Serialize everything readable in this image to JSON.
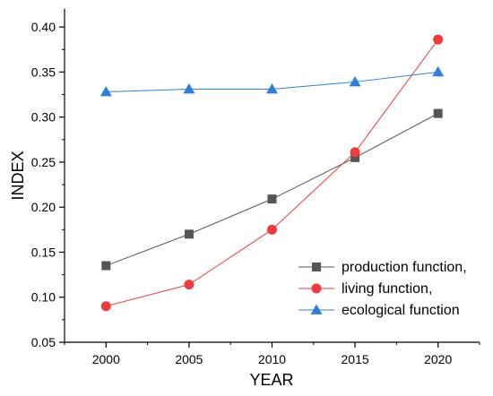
{
  "chart_data": {
    "type": "line",
    "title": "",
    "xlabel": "YEAR",
    "ylabel": "INDEX",
    "x": [
      2000,
      2005,
      2010,
      2015,
      2020
    ],
    "xticks": [
      "2000",
      "2005",
      "2010",
      "2015",
      "2020"
    ],
    "xlim": [
      1997.5,
      2022.5
    ],
    "yticks": [
      "0.05",
      "0.10",
      "0.15",
      "0.20",
      "0.25",
      "0.30",
      "0.35",
      "0.40"
    ],
    "ylim": [
      0.05,
      0.42
    ],
    "grid": false,
    "legend_position": "bottom-right",
    "series": [
      {
        "name": "production function,",
        "marker": "square",
        "color": "#555555",
        "values": [
          0.135,
          0.17,
          0.209,
          0.255,
          0.304
        ]
      },
      {
        "name": "living function,",
        "marker": "circle",
        "color": "#f03c3c",
        "values": [
          0.09,
          0.114,
          0.175,
          0.261,
          0.386
        ]
      },
      {
        "name": "ecological function",
        "marker": "triangle",
        "color": "#2f7fd6",
        "values": [
          0.328,
          0.331,
          0.331,
          0.339,
          0.35
        ]
      }
    ]
  }
}
